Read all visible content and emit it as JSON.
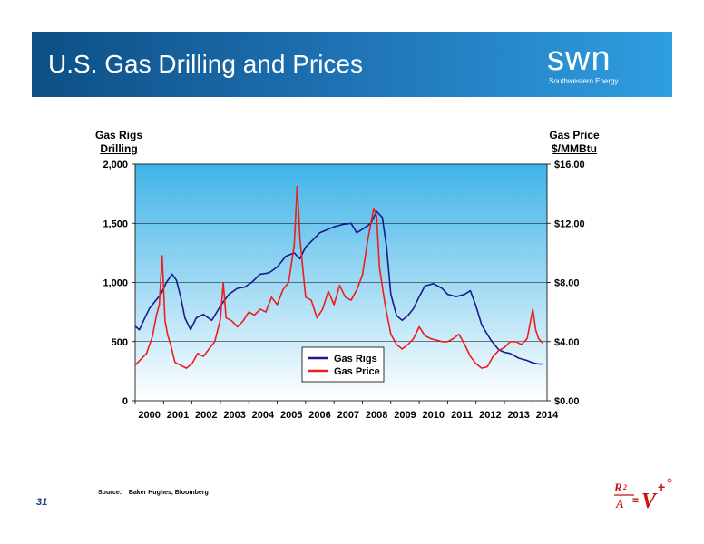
{
  "header": {
    "title": "U.S. Gas Drilling and Prices"
  },
  "logo": {
    "word": "swn",
    "subtitle": "Southwestern Energy"
  },
  "left_axis_header": {
    "line1": "Gas Rigs",
    "line2": "Drilling"
  },
  "right_axis_header": {
    "line1": "Gas Price",
    "line2": "$/MMBtu"
  },
  "footer": {
    "source_label": "Source:",
    "source_text": "Baker Hughes, Bloomberg",
    "page_number": "31"
  },
  "colors": {
    "rigs": "#1a1a8c",
    "price": "#ee1c1c",
    "plot_top": "#3fb4e8",
    "plot_bottom": "#ffffff",
    "banner": "#0d4f86"
  },
  "chart_data": {
    "type": "line",
    "title": "",
    "xlabel": "",
    "ylabel": "Gas Rigs Drilling",
    "y2label": "Gas Price $/MMBtu",
    "x_ticks": [
      "2000",
      "2001",
      "2002",
      "2003",
      "2004",
      "2005",
      "2006",
      "2007",
      "2008",
      "2009",
      "2010",
      "2011",
      "2012",
      "2013",
      "2014"
    ],
    "y_ticks": [
      "0",
      "500",
      "1,000",
      "1,500",
      "2,000"
    ],
    "y2_ticks": [
      "$0.00",
      "$4.00",
      "$8.00",
      "$12.00",
      "$16.00"
    ],
    "ylim": [
      0,
      2000
    ],
    "y2lim": [
      0,
      16
    ],
    "xlim": [
      2000.0,
      2014.5
    ],
    "legend": {
      "position": "center-bottom",
      "entries": [
        "Gas Rigs",
        "Gas Price"
      ]
    },
    "grid": true,
    "series": [
      {
        "name": "Gas Rigs",
        "axis": "left",
        "x": [
          2000.0,
          2000.15,
          2000.3,
          2000.5,
          2000.7,
          2000.9,
          2001.1,
          2001.3,
          2001.45,
          2001.6,
          2001.75,
          2001.95,
          2002.15,
          2002.4,
          2002.7,
          2003.0,
          2003.3,
          2003.6,
          2003.85,
          2004.1,
          2004.4,
          2004.7,
          2005.0,
          2005.3,
          2005.6,
          2005.8,
          2006.0,
          2006.3,
          2006.5,
          2006.8,
          2007.0,
          2007.3,
          2007.6,
          2007.8,
          2008.0,
          2008.3,
          2008.5,
          2008.7,
          2008.85,
          2009.0,
          2009.2,
          2009.4,
          2009.6,
          2009.8,
          2010.0,
          2010.2,
          2010.5,
          2010.8,
          2011.0,
          2011.3,
          2011.6,
          2011.8,
          2012.0,
          2012.2,
          2012.5,
          2012.8,
          2013.0,
          2013.2,
          2013.5,
          2013.8,
          2014.0,
          2014.2,
          2014.35
        ],
        "y": [
          630,
          600,
          680,
          780,
          840,
          900,
          1000,
          1070,
          1020,
          880,
          700,
          600,
          700,
          730,
          680,
          800,
          900,
          950,
          960,
          1000,
          1070,
          1080,
          1130,
          1220,
          1250,
          1200,
          1300,
          1370,
          1420,
          1450,
          1470,
          1490,
          1500,
          1420,
          1450,
          1500,
          1600,
          1550,
          1300,
          900,
          720,
          680,
          720,
          780,
          880,
          970,
          990,
          950,
          900,
          880,
          900,
          930,
          800,
          640,
          520,
          430,
          410,
          400,
          360,
          340,
          320,
          310,
          310
        ]
      },
      {
        "name": "Gas Price",
        "axis": "right",
        "x": [
          2000.0,
          2000.2,
          2000.4,
          2000.6,
          2000.75,
          2000.85,
          2000.95,
          2001.05,
          2001.15,
          2001.25,
          2001.4,
          2001.6,
          2001.8,
          2002.0,
          2002.2,
          2002.4,
          2002.6,
          2002.8,
          2003.0,
          2003.1,
          2003.2,
          2003.4,
          2003.6,
          2003.8,
          2004.0,
          2004.2,
          2004.4,
          2004.6,
          2004.8,
          2005.0,
          2005.2,
          2005.4,
          2005.6,
          2005.7,
          2005.75,
          2005.8,
          2005.9,
          2006.0,
          2006.2,
          2006.4,
          2006.6,
          2006.8,
          2007.0,
          2007.2,
          2007.4,
          2007.6,
          2007.8,
          2008.0,
          2008.2,
          2008.4,
          2008.5,
          2008.6,
          2008.8,
          2009.0,
          2009.2,
          2009.4,
          2009.6,
          2009.8,
          2010.0,
          2010.2,
          2010.4,
          2010.6,
          2010.8,
          2011.0,
          2011.2,
          2011.4,
          2011.6,
          2011.8,
          2012.0,
          2012.2,
          2012.4,
          2012.6,
          2012.8,
          2013.0,
          2013.2,
          2013.4,
          2013.6,
          2013.8,
          2014.0,
          2014.1,
          2014.2,
          2014.35
        ],
        "y": [
          2.4,
          2.8,
          3.2,
          4.3,
          5.8,
          6.5,
          9.8,
          5.4,
          4.4,
          3.8,
          2.6,
          2.4,
          2.2,
          2.5,
          3.2,
          3.0,
          3.5,
          4.0,
          5.5,
          8.0,
          5.6,
          5.4,
          5.0,
          5.4,
          6.0,
          5.8,
          6.2,
          6.0,
          7.0,
          6.5,
          7.5,
          8.0,
          10.5,
          14.5,
          13.0,
          11.0,
          9.0,
          7.0,
          6.8,
          5.6,
          6.2,
          7.4,
          6.5,
          7.8,
          7.0,
          6.8,
          7.5,
          8.5,
          11.0,
          13.0,
          12.5,
          9.0,
          6.5,
          4.5,
          3.8,
          3.5,
          3.8,
          4.2,
          5.0,
          4.4,
          4.2,
          4.1,
          4.0,
          4.0,
          4.2,
          4.5,
          3.8,
          3.0,
          2.5,
          2.2,
          2.3,
          3.0,
          3.4,
          3.6,
          4.0,
          4.0,
          3.8,
          4.2,
          6.2,
          4.8,
          4.2,
          3.9
        ]
      }
    ]
  }
}
